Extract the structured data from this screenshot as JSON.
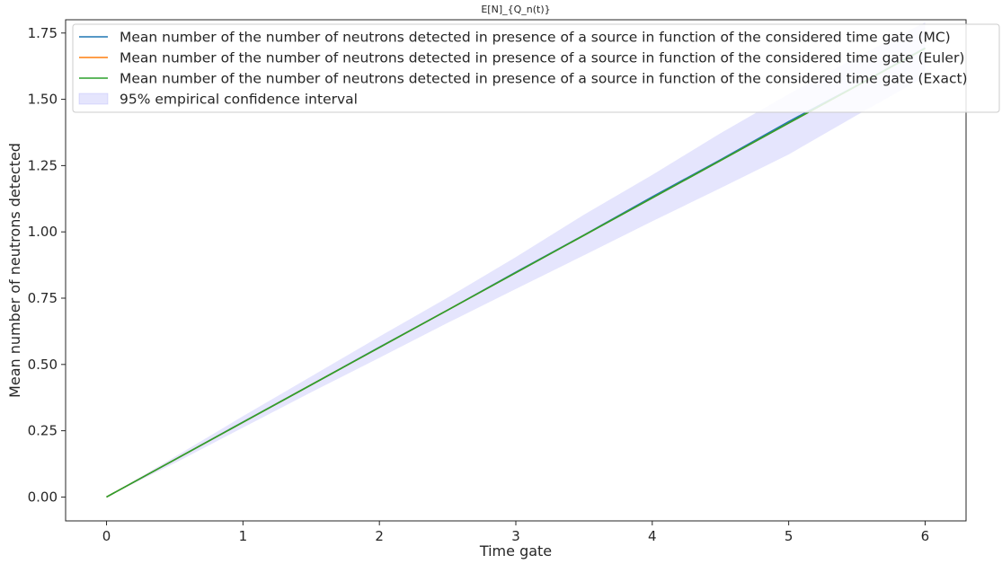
{
  "chart_data": {
    "type": "line",
    "title": "E[N]_{Q_n(t)}",
    "xlabel": "Time gate",
    "ylabel": "Mean number of neutrons  detected",
    "xlim": [
      -0.3,
      6.3
    ],
    "ylim": [
      -0.09,
      1.8
    ],
    "xticks": [
      0,
      1,
      2,
      3,
      4,
      5,
      6
    ],
    "xtick_labels": [
      "0",
      "1",
      "2",
      "3",
      "4",
      "5",
      "6"
    ],
    "yticks": [
      0.0,
      0.25,
      0.5,
      0.75,
      1.0,
      1.25,
      1.5,
      1.75
    ],
    "ytick_labels": [
      "0.00",
      "0.25",
      "0.50",
      "0.75",
      "1.00",
      "1.25",
      "1.50",
      "1.75"
    ],
    "grid": false,
    "legend_position": "top-right",
    "x": [
      0,
      0.5,
      1,
      1.5,
      2,
      2.5,
      3,
      3.5,
      4,
      4.5,
      5,
      5.5,
      6
    ],
    "series": [
      {
        "name": "Mean number of the number of neutrons detected in presence of a source in function of the considered time gate (MC)",
        "color": "#1f77b4",
        "values": [
          0,
          0.141,
          0.283,
          0.423,
          0.565,
          0.705,
          0.848,
          0.988,
          1.132,
          1.272,
          1.416,
          1.552,
          1.694
        ]
      },
      {
        "name": "Mean number of the number of neutrons detected in presence of a source in function of the considered time gate (Euler)",
        "color": "#ff7f0e",
        "values": [
          0,
          0.141,
          0.282,
          0.423,
          0.564,
          0.705,
          0.846,
          0.987,
          1.128,
          1.269,
          1.41,
          1.551,
          1.692
        ]
      },
      {
        "name": "Mean number of the number of neutrons detected in presence of a source in function of the considered time gate (Exact)",
        "color": "#2ca02c",
        "values": [
          0,
          0.141,
          0.282,
          0.423,
          0.564,
          0.705,
          0.846,
          0.987,
          1.128,
          1.269,
          1.41,
          1.551,
          1.692
        ]
      }
    ],
    "confidence_band": {
      "name": "95% empirical confidence interval",
      "color": "#7b7bf5",
      "lower": [
        0,
        0.128,
        0.262,
        0.395,
        0.525,
        0.657,
        0.785,
        0.912,
        1.04,
        1.165,
        1.292,
        1.44,
        1.585
      ],
      "upper": [
        0,
        0.152,
        0.305,
        0.455,
        0.605,
        0.752,
        0.905,
        1.065,
        1.215,
        1.372,
        1.52,
        1.66,
        1.79
      ]
    }
  }
}
